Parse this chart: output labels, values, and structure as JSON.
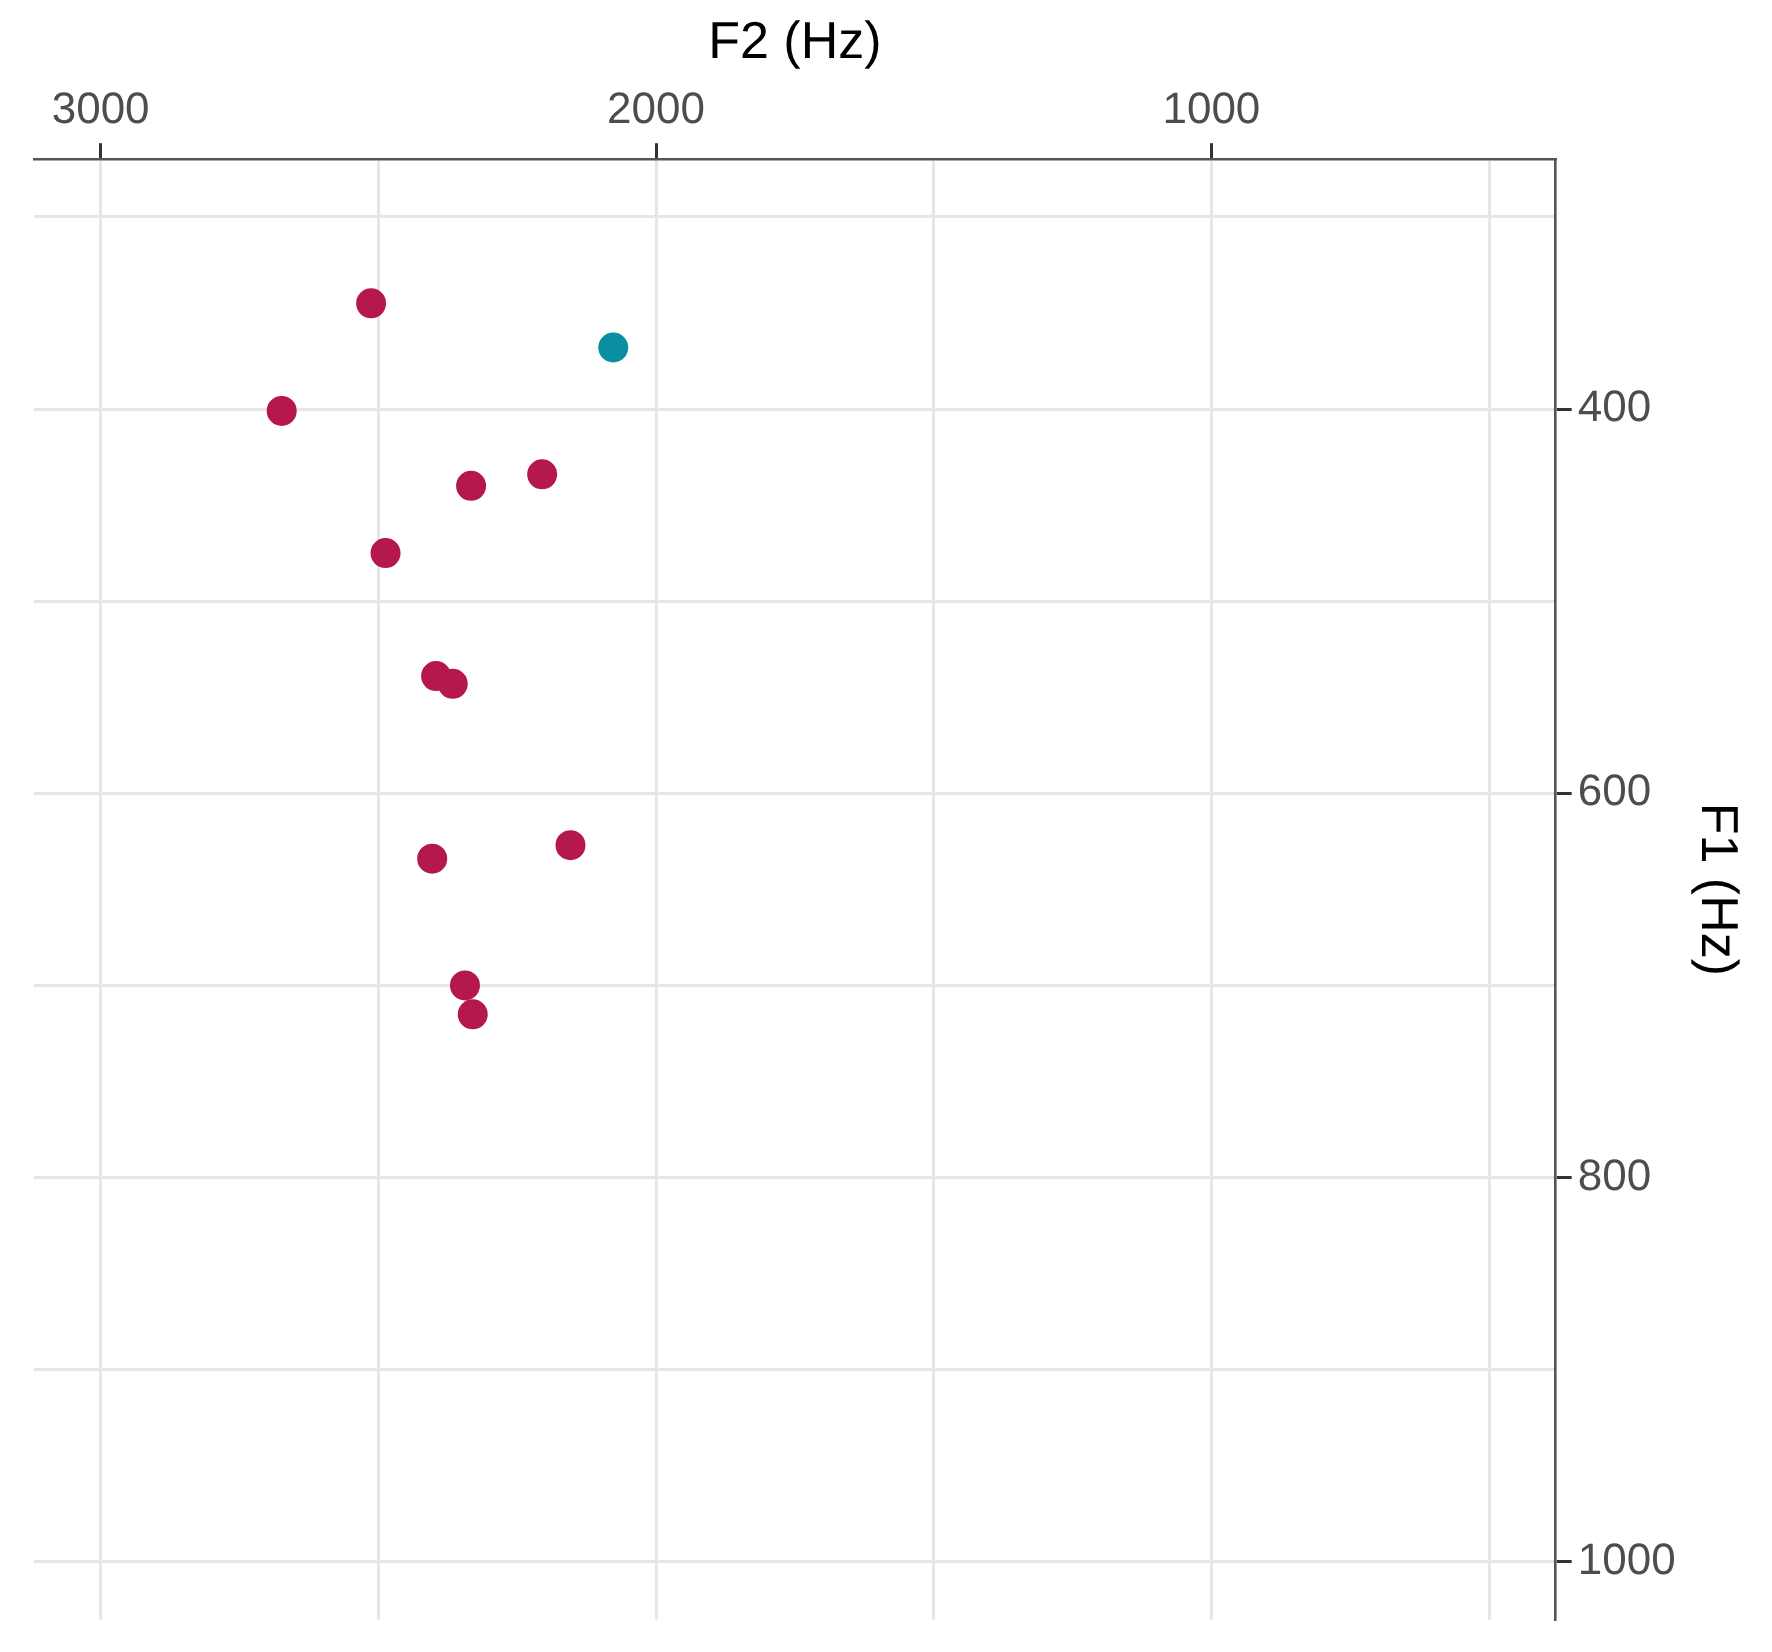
{
  "chart_data": {
    "type": "scatter",
    "xlabel": "F2 (Hz)",
    "ylabel": "F1 (Hz)",
    "xlim": [
      3120,
      380
    ],
    "ylim": [
      1030,
      270
    ],
    "xticks": [
      {
        "value": 2500,
        "label": null
      },
      {
        "value": 1500,
        "label": null
      },
      {
        "value": 500,
        "label": null
      },
      3000,
      2000,
      1000
    ],
    "yticks": [
      {
        "value": 300,
        "label": null
      },
      {
        "value": 500,
        "label": null
      },
      {
        "value": 700,
        "label": null
      },
      {
        "value": 900,
        "label": null
      },
      400,
      600,
      800,
      1000
    ],
    "grid": true,
    "legend": false,
    "marker": "circle",
    "series": [
      {
        "color": "#b5174f",
        "x": [
          2513,
          2674,
          2333,
          2205,
          2487,
          2396,
          2366,
          2403,
          2154,
          2344,
          2330
        ],
        "values": [
          345,
          401,
          440,
          434,
          475,
          539,
          543,
          634,
          627,
          700,
          715
        ]
      },
      {
        "color": "#0a8fa0",
        "x": [
          2077
        ],
        "values": [
          368
        ]
      }
    ]
  }
}
